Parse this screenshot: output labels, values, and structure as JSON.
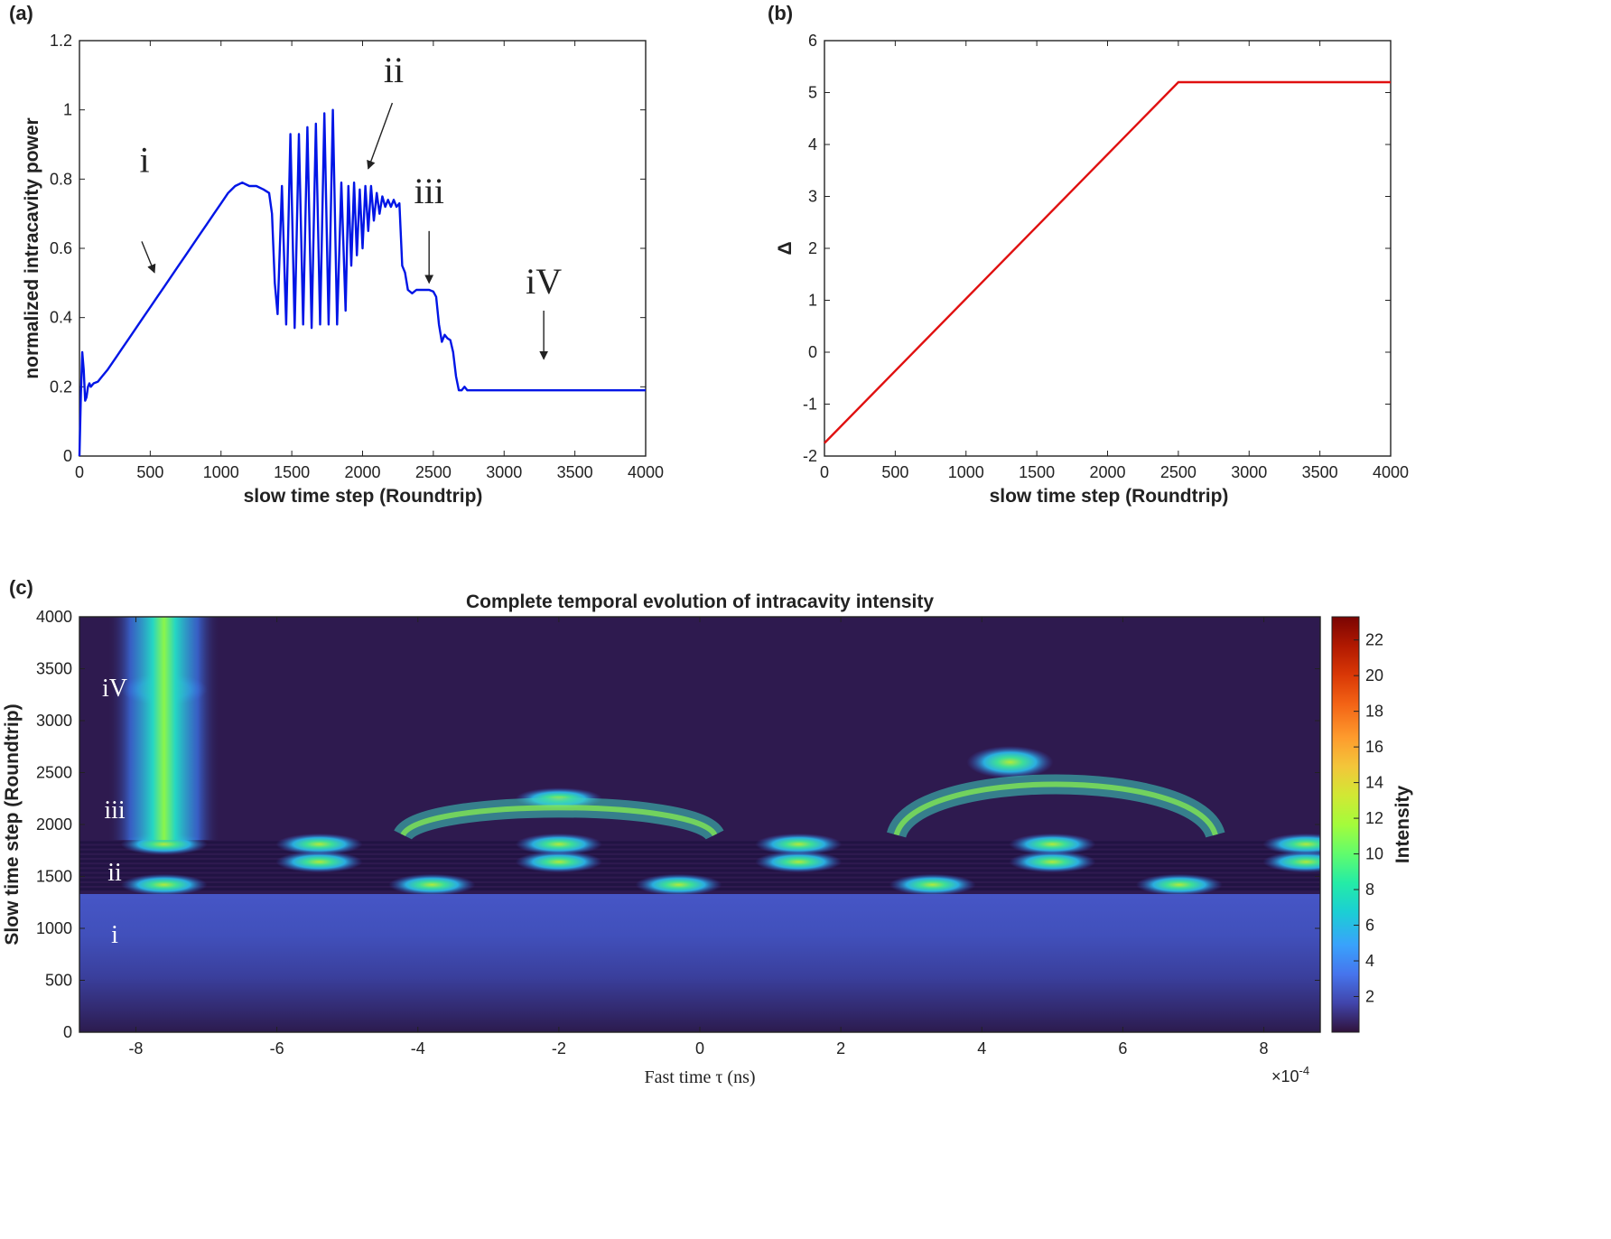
{
  "colors": {
    "line_a": "#0015e6",
    "line_b": "#e01010",
    "arrow": "#222222",
    "heat_bg": "#2e1a4f",
    "annot_white": "#ffffff"
  },
  "chart_data": [
    {
      "id": "a",
      "type": "line",
      "panel_label": "(a)",
      "title": "",
      "xlabel": "slow time step (Roundtrip)",
      "ylabel": "normalized intracavity power",
      "xlim": [
        0,
        4000
      ],
      "ylim": [
        0,
        1.2
      ],
      "xticks": [
        0,
        500,
        1000,
        1500,
        2000,
        2500,
        3000,
        3500,
        4000
      ],
      "yticks": [
        0,
        0.2,
        0.4,
        0.6,
        0.8,
        1,
        1.2
      ],
      "ytick_labels": [
        "0",
        "0.2",
        "0.4",
        "0.6",
        "0.8",
        "1",
        "1.2"
      ],
      "series": [
        {
          "name": "intracavity power",
          "x": [
            0,
            10,
            20,
            30,
            40,
            50,
            60,
            70,
            80,
            100,
            130,
            160,
            200,
            250,
            300,
            350,
            400,
            450,
            500,
            550,
            600,
            650,
            700,
            750,
            800,
            850,
            900,
            950,
            1000,
            1050,
            1100,
            1150,
            1200,
            1250,
            1300,
            1340,
            1360,
            1380,
            1400,
            1430,
            1460,
            1490,
            1520,
            1550,
            1580,
            1610,
            1640,
            1670,
            1700,
            1730,
            1760,
            1790,
            1820,
            1850,
            1880,
            1900,
            1920,
            1940,
            1960,
            1980,
            2000,
            2020,
            2040,
            2060,
            2080,
            2100,
            2120,
            2140,
            2160,
            2180,
            2200,
            2220,
            2240,
            2260,
            2280,
            2300,
            2320,
            2350,
            2380,
            2410,
            2440,
            2470,
            2500,
            2520,
            2540,
            2560,
            2580,
            2600,
            2620,
            2640,
            2660,
            2680,
            2700,
            2720,
            2740,
            2760,
            2800,
            3000,
            3500,
            4000
          ],
          "values": [
            0.0,
            0.18,
            0.3,
            0.25,
            0.16,
            0.17,
            0.2,
            0.21,
            0.2,
            0.21,
            0.215,
            0.23,
            0.25,
            0.28,
            0.31,
            0.34,
            0.37,
            0.4,
            0.43,
            0.46,
            0.49,
            0.52,
            0.55,
            0.58,
            0.61,
            0.64,
            0.67,
            0.7,
            0.73,
            0.76,
            0.78,
            0.79,
            0.78,
            0.78,
            0.77,
            0.76,
            0.7,
            0.5,
            0.41,
            0.78,
            0.38,
            0.93,
            0.37,
            0.93,
            0.38,
            0.95,
            0.37,
            0.96,
            0.38,
            0.99,
            0.38,
            1.0,
            0.38,
            0.79,
            0.42,
            0.78,
            0.55,
            0.79,
            0.58,
            0.77,
            0.6,
            0.78,
            0.65,
            0.78,
            0.68,
            0.76,
            0.7,
            0.75,
            0.72,
            0.74,
            0.72,
            0.74,
            0.72,
            0.73,
            0.55,
            0.53,
            0.48,
            0.47,
            0.48,
            0.48,
            0.48,
            0.48,
            0.475,
            0.46,
            0.38,
            0.33,
            0.35,
            0.34,
            0.335,
            0.3,
            0.23,
            0.19,
            0.19,
            0.2,
            0.19,
            0.19,
            0.19,
            0.19,
            0.19,
            0.19
          ]
        }
      ],
      "annotations": [
        {
          "text": "i",
          "label_at": [
            460,
            0.82
          ],
          "arrow_from": [
            440,
            0.62
          ],
          "arrow_to": [
            530,
            0.53
          ]
        },
        {
          "text": "ii",
          "label_at": [
            2220,
            1.08
          ],
          "arrow_from": [
            2210,
            1.02
          ],
          "arrow_to": [
            2040,
            0.83
          ]
        },
        {
          "text": "iii",
          "label_at": [
            2470,
            0.73
          ],
          "arrow_from": [
            2470,
            0.65
          ],
          "arrow_to": [
            2470,
            0.5
          ]
        },
        {
          "text": "iV",
          "label_at": [
            3280,
            0.47
          ],
          "arrow_from": [
            3280,
            0.42
          ],
          "arrow_to": [
            3280,
            0.28
          ]
        }
      ]
    },
    {
      "id": "b",
      "type": "line",
      "panel_label": "(b)",
      "title": "",
      "xlabel": "slow time step (Roundtrip)",
      "ylabel": "Δ",
      "xlim": [
        0,
        4000
      ],
      "ylim": [
        -2,
        6
      ],
      "xticks": [
        0,
        500,
        1000,
        1500,
        2000,
        2500,
        3000,
        3500,
        4000
      ],
      "yticks": [
        -2,
        -1,
        0,
        1,
        2,
        3,
        4,
        5,
        6
      ],
      "series": [
        {
          "name": "detuning",
          "x": [
            0,
            2500,
            4000
          ],
          "values": [
            -1.75,
            5.2,
            5.2
          ]
        }
      ]
    },
    {
      "id": "c",
      "type": "heatmap",
      "panel_label": "(c)",
      "title": "Complete temporal evolution of intracavity intensity",
      "xlabel": "Fast time τ (ns)",
      "x_multiplier": "×10",
      "x_multiplier_exp": "-4",
      "ylabel": "Slow time step (Roundtrip)",
      "colorbar_label": "Intensity",
      "xlim": [
        -8.8,
        8.8
      ],
      "ylim": [
        0,
        4000
      ],
      "xticks": [
        -8,
        -6,
        -4,
        -2,
        0,
        2,
        4,
        6,
        8
      ],
      "yticks": [
        0,
        500,
        1000,
        1500,
        2000,
        2500,
        3000,
        3500,
        4000
      ],
      "clim": [
        0,
        23.3
      ],
      "colorbar_ticks": [
        2,
        4,
        6,
        8,
        10,
        12,
        14,
        16,
        18,
        20,
        22
      ],
      "colormap": "turbo",
      "regions": [
        {
          "label": "i",
          "slow_range": [
            0,
            1350
          ],
          "description": "homogeneous background rising from 0.5 to 3.5"
        },
        {
          "label": "ii",
          "slow_range": [
            1350,
            1850
          ],
          "description": "breathing pulses at tau = -7.6, -5.4, -3.8, -2.0, -0.3, 1.4, 3.3, 5.0, 6.8, 8.6"
        },
        {
          "label": "iii",
          "slow_range": [
            1850,
            2550
          ],
          "description": "pulses at -7.4, -3.7, -0.3, 3.3, 6.8 merging"
        },
        {
          "label": "iV",
          "slow_range": [
            2550,
            4000
          ],
          "description": "single soliton near tau = -7.6"
        }
      ],
      "peaks": [
        {
          "tau": -7.6,
          "slow": 1420,
          "value": 10
        },
        {
          "tau": -3.8,
          "slow": 1420,
          "value": 10
        },
        {
          "tau": -0.3,
          "slow": 1420,
          "value": 10
        },
        {
          "tau": 3.3,
          "slow": 1420,
          "value": 10
        },
        {
          "tau": 6.8,
          "slow": 1420,
          "value": 10
        },
        {
          "tau": -5.4,
          "slow": 1640,
          "value": 11
        },
        {
          "tau": -2.0,
          "slow": 1640,
          "value": 11
        },
        {
          "tau": 1.4,
          "slow": 1640,
          "value": 11
        },
        {
          "tau": 5.0,
          "slow": 1640,
          "value": 11
        },
        {
          "tau": 8.6,
          "slow": 1640,
          "value": 11
        },
        {
          "tau": -7.6,
          "slow": 1810,
          "value": 10
        },
        {
          "tau": -5.4,
          "slow": 1810,
          "value": 10
        },
        {
          "tau": -2.0,
          "slow": 1810,
          "value": 10
        },
        {
          "tau": 1.4,
          "slow": 1810,
          "value": 10
        },
        {
          "tau": 5.0,
          "slow": 1810,
          "value": 10
        },
        {
          "tau": 8.6,
          "slow": 1810,
          "value": 10
        },
        {
          "tau": -2.0,
          "slow": 2250,
          "value": 14
        },
        {
          "tau": 4.4,
          "slow": 2600,
          "value": 13
        },
        {
          "tau": -7.6,
          "slow": 3300,
          "value": 10
        }
      ],
      "annotations": [
        {
          "text": "i",
          "at": [
            -8.3,
            950
          ]
        },
        {
          "text": "ii",
          "at": [
            -8.3,
            1550
          ]
        },
        {
          "text": "iii",
          "at": [
            -8.3,
            2150
          ]
        },
        {
          "text": "iV",
          "at": [
            -8.3,
            3320
          ]
        }
      ]
    }
  ]
}
